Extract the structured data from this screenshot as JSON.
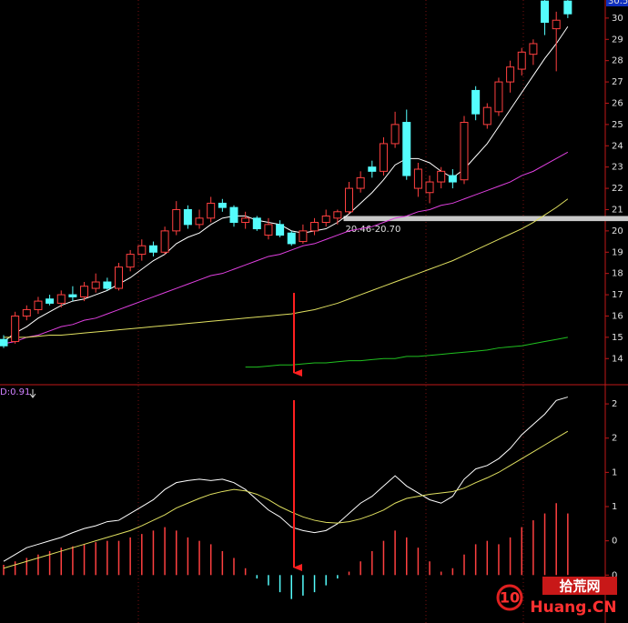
{
  "chart_data": [
    {
      "type": "candlestick",
      "top_label": "30.5",
      "ylim": [
        12.9,
        30.85
      ],
      "yticks": [
        14,
        15,
        16,
        17,
        18,
        19,
        20,
        21,
        22,
        23,
        24,
        25,
        26,
        27,
        28,
        29,
        30
      ],
      "up_color": "#ff4040",
      "down_color": "#54fcfc",
      "open": [
        14.9,
        14.8,
        16.0,
        16.3,
        16.8,
        16.6,
        17.0,
        16.9,
        17.3,
        17.6,
        17.3,
        18.3,
        18.9,
        19.3,
        19.0,
        20.0,
        21.0,
        20.3,
        20.6,
        21.3,
        21.1,
        20.4,
        20.6,
        19.8,
        20.3,
        19.9,
        19.5,
        20.0,
        20.4,
        20.6,
        20.9,
        22.0,
        23.0,
        22.8,
        24.1,
        25.1,
        22.0,
        21.8,
        22.3,
        22.6,
        22.4,
        26.6,
        25.0,
        25.6,
        27.0,
        27.6,
        28.3,
        30.8,
        29.5,
        30.8
      ],
      "high": [
        15.1,
        16.2,
        16.5,
        16.9,
        17.0,
        17.2,
        17.4,
        17.6,
        18.0,
        17.8,
        18.5,
        19.1,
        19.6,
        19.5,
        20.2,
        21.4,
        21.2,
        21.0,
        21.6,
        21.5,
        21.2,
        20.9,
        20.7,
        20.6,
        20.5,
        20.0,
        20.3,
        20.6,
        21.0,
        21.0,
        22.3,
        22.8,
        23.3,
        24.4,
        25.6,
        25.7,
        23.2,
        22.6,
        23.0,
        22.9,
        25.4,
        26.8,
        26.0,
        27.2,
        28.0,
        28.6,
        29.0,
        31.0,
        30.3,
        31.2
      ],
      "low": [
        14.5,
        14.7,
        15.8,
        16.1,
        16.5,
        16.4,
        16.7,
        16.7,
        17.1,
        17.2,
        17.2,
        18.1,
        18.6,
        18.8,
        18.9,
        19.8,
        20.1,
        20.1,
        20.4,
        20.9,
        20.2,
        20.1,
        20.0,
        19.6,
        19.7,
        19.3,
        19.4,
        19.8,
        20.2,
        20.3,
        20.8,
        21.8,
        22.5,
        22.6,
        23.9,
        22.4,
        21.6,
        21.3,
        22.0,
        22.0,
        22.2,
        25.2,
        24.8,
        25.4,
        26.5,
        27.3,
        27.8,
        29.2,
        27.5,
        30.0
      ],
      "close": [
        14.6,
        16.0,
        16.3,
        16.7,
        16.6,
        17.0,
        16.9,
        17.4,
        17.6,
        17.3,
        18.3,
        18.9,
        19.3,
        19.0,
        20.0,
        21.0,
        20.3,
        20.6,
        21.3,
        21.1,
        20.4,
        20.6,
        20.1,
        20.3,
        19.8,
        19.4,
        20.0,
        20.4,
        20.7,
        20.9,
        22.0,
        22.5,
        22.8,
        24.1,
        25.0,
        22.6,
        22.9,
        22.3,
        22.8,
        22.3,
        25.1,
        25.5,
        25.8,
        27.0,
        27.7,
        28.4,
        28.8,
        29.8,
        29.9,
        30.2
      ],
      "series": [
        {
          "color": "#ffffff",
          "values": [
            14.8,
            15.2,
            15.5,
            15.9,
            16.2,
            16.5,
            16.7,
            16.8,
            17.0,
            17.2,
            17.5,
            17.8,
            18.2,
            18.6,
            18.9,
            19.4,
            19.7,
            19.9,
            20.3,
            20.6,
            20.7,
            20.7,
            20.5,
            20.4,
            20.3,
            20.0,
            19.9,
            20.0,
            20.1,
            20.4,
            20.8,
            21.3,
            21.8,
            22.4,
            23.1,
            23.4,
            23.4,
            23.2,
            22.8,
            22.5,
            22.9,
            23.5,
            24.1,
            24.9,
            25.7,
            26.5,
            27.3,
            28.1,
            28.8,
            29.6
          ]
        },
        {
          "color": "#e040e0",
          "values": [
            14.7,
            14.8,
            15.0,
            15.1,
            15.3,
            15.5,
            15.6,
            15.8,
            15.9,
            16.1,
            16.3,
            16.5,
            16.7,
            16.9,
            17.1,
            17.3,
            17.5,
            17.7,
            17.9,
            18.0,
            18.2,
            18.4,
            18.6,
            18.8,
            18.9,
            19.1,
            19.3,
            19.4,
            19.6,
            19.8,
            20.0,
            20.1,
            20.2,
            20.4,
            20.6,
            20.7,
            20.9,
            21.0,
            21.2,
            21.3,
            21.5,
            21.7,
            21.9,
            22.1,
            22.3,
            22.6,
            22.8,
            23.1,
            23.4,
            23.7
          ]
        },
        {
          "color": "#e0e060",
          "values": [
            15.0,
            15.0,
            15.0,
            15.05,
            15.1,
            15.1,
            15.15,
            15.2,
            15.25,
            15.3,
            15.35,
            15.4,
            15.45,
            15.5,
            15.55,
            15.6,
            15.65,
            15.7,
            15.75,
            15.8,
            15.85,
            15.9,
            15.95,
            16.0,
            16.05,
            16.1,
            16.2,
            16.3,
            16.45,
            16.6,
            16.8,
            17.0,
            17.2,
            17.4,
            17.6,
            17.8,
            18.0,
            18.2,
            18.4,
            18.6,
            18.85,
            19.1,
            19.35,
            19.6,
            19.85,
            20.1,
            20.4,
            20.75,
            21.1,
            21.5
          ]
        },
        {
          "color": "#20c020",
          "values": [
            null,
            null,
            null,
            null,
            null,
            null,
            null,
            null,
            null,
            null,
            null,
            null,
            null,
            null,
            null,
            null,
            null,
            null,
            null,
            null,
            null,
            13.6,
            13.6,
            13.65,
            13.7,
            13.7,
            13.75,
            13.8,
            13.8,
            13.85,
            13.9,
            13.9,
            13.95,
            14.0,
            14.0,
            14.1,
            14.1,
            14.15,
            14.2,
            14.25,
            14.3,
            14.35,
            14.4,
            14.5,
            14.55,
            14.6,
            14.7,
            14.8,
            14.9,
            15.0
          ]
        }
      ],
      "band": [
        20.46,
        20.7
      ],
      "band_label": "20.46-20.70",
      "band_start": 30
    },
    {
      "type": "macd",
      "label": "D:0.91",
      "ylim": [
        -0.7,
        2.78
      ],
      "yticks": [
        0,
        {
          "value": 0.5,
          "label": "0"
        },
        1,
        {
          "value": 1.5,
          "label": "1"
        },
        2,
        {
          "value": 2.5,
          "label": "2"
        }
      ],
      "up_color": "#ff4040",
      "down_color": "#54fcfc",
      "values": [
        0.15,
        0.2,
        0.25,
        0.3,
        0.35,
        0.4,
        0.42,
        0.45,
        0.48,
        0.5,
        0.5,
        0.55,
        0.6,
        0.65,
        0.7,
        0.65,
        0.55,
        0.5,
        0.45,
        0.35,
        0.25,
        0.1,
        -0.05,
        -0.15,
        -0.25,
        -0.35,
        -0.3,
        -0.25,
        -0.15,
        -0.05,
        0.05,
        0.2,
        0.35,
        0.5,
        0.65,
        0.55,
        0.4,
        0.2,
        0.05,
        0.1,
        0.3,
        0.45,
        0.5,
        0.45,
        0.55,
        0.7,
        0.8,
        0.9,
        1.05,
        0.9
      ],
      "series": [
        {
          "color": "#ffffff",
          "values": [
            0.2,
            0.3,
            0.4,
            0.45,
            0.5,
            0.55,
            0.62,
            0.68,
            0.72,
            0.78,
            0.8,
            0.9,
            1.0,
            1.1,
            1.25,
            1.35,
            1.38,
            1.4,
            1.38,
            1.4,
            1.35,
            1.25,
            1.1,
            0.95,
            0.85,
            0.7,
            0.65,
            0.62,
            0.65,
            0.75,
            0.9,
            1.05,
            1.15,
            1.3,
            1.45,
            1.3,
            1.2,
            1.1,
            1.05,
            1.15,
            1.4,
            1.55,
            1.6,
            1.7,
            1.85,
            2.05,
            2.2,
            2.35,
            2.55,
            2.6
          ]
        },
        {
          "color": "#e0e060",
          "values": [
            0.1,
            0.15,
            0.2,
            0.25,
            0.3,
            0.35,
            0.4,
            0.45,
            0.5,
            0.55,
            0.6,
            0.65,
            0.72,
            0.8,
            0.88,
            0.98,
            1.05,
            1.12,
            1.18,
            1.22,
            1.25,
            1.23,
            1.18,
            1.1,
            1.0,
            0.92,
            0.85,
            0.8,
            0.77,
            0.76,
            0.78,
            0.82,
            0.88,
            0.95,
            1.05,
            1.12,
            1.15,
            1.18,
            1.2,
            1.22,
            1.27,
            1.35,
            1.42,
            1.5,
            1.6,
            1.7,
            1.8,
            1.9,
            2.0,
            2.1
          ]
        }
      ]
    }
  ],
  "watermark": {
    "number": "10",
    "site": "拾荒网",
    "domain": "Huang.CN"
  }
}
